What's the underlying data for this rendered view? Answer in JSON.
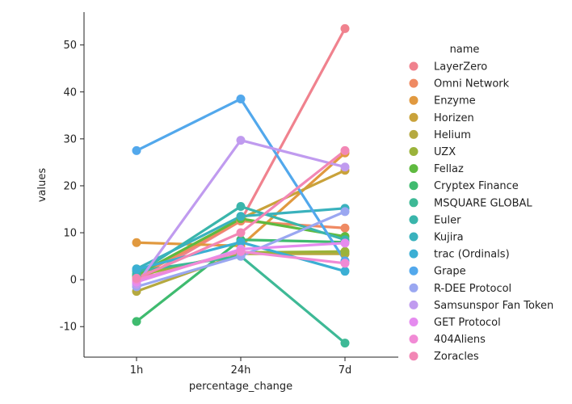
{
  "chart_data": {
    "type": "line",
    "xlabel": "percentage_change",
    "ylabel": "values",
    "categories": [
      "1h",
      "24h",
      "7d"
    ],
    "ylim": [
      -16.5,
      57
    ],
    "yticks": [
      -10,
      0,
      10,
      20,
      30,
      40,
      50
    ],
    "grid": false,
    "legend": {
      "title": "name",
      "placement": "right"
    },
    "series": [
      {
        "name": "LayerZero",
        "color": "#f0828e",
        "values": [
          -0.5,
          12.5,
          53.5
        ]
      },
      {
        "name": "Omni Network",
        "color": "#ef8a63",
        "values": [
          0.5,
          12.5,
          11.0
        ]
      },
      {
        "name": "Enzyme",
        "color": "#e1993f",
        "values": [
          7.9,
          7.2,
          27.0
        ]
      },
      {
        "name": "Horizen",
        "color": "#c9a23a",
        "values": [
          1.0,
          13.0,
          23.3
        ]
      },
      {
        "name": "Helium",
        "color": "#b5a940",
        "values": [
          -2.5,
          5.5,
          5.5
        ]
      },
      {
        "name": "UZX",
        "color": "#9bb33a",
        "values": [
          0.8,
          5.8,
          6.0
        ]
      },
      {
        "name": "Fellaz",
        "color": "#5fba3f",
        "values": [
          1.0,
          13.0,
          9.2
        ]
      },
      {
        "name": "Cryptex Finance",
        "color": "#3fbb6f",
        "values": [
          -8.9,
          8.5,
          8.0
        ]
      },
      {
        "name": "MSQUARE GLOBAL",
        "color": "#3eb996",
        "values": [
          1.8,
          5.0,
          -13.5
        ]
      },
      {
        "name": "Euler",
        "color": "#3ab5ab",
        "values": [
          1.2,
          15.6,
          8.5
        ]
      },
      {
        "name": "Kujira",
        "color": "#3ab2bd",
        "values": [
          2.3,
          13.5,
          15.2
        ]
      },
      {
        "name": "trac (Ordinals)",
        "color": "#3bafd4",
        "values": [
          2.2,
          8.0,
          1.8
        ]
      },
      {
        "name": "Grape",
        "color": "#52a8ec",
        "values": [
          27.5,
          38.5,
          4.0
        ]
      },
      {
        "name": "R-DEE Protocol",
        "color": "#9aa7f1",
        "values": [
          -1.5,
          5.0,
          14.5
        ]
      },
      {
        "name": "Samsunspor Fan Token",
        "color": "#c09bef",
        "values": [
          -1.0,
          29.7,
          24.0
        ]
      },
      {
        "name": "GET Protocol",
        "color": "#e58bef",
        "values": [
          -0.5,
          6.5,
          7.8
        ]
      },
      {
        "name": "404Aliens",
        "color": "#f18ad5",
        "values": [
          0.0,
          6.0,
          3.5
        ]
      },
      {
        "name": "Zoracles",
        "color": "#f287b5",
        "values": [
          0.3,
          10.0,
          27.5
        ]
      }
    ]
  }
}
